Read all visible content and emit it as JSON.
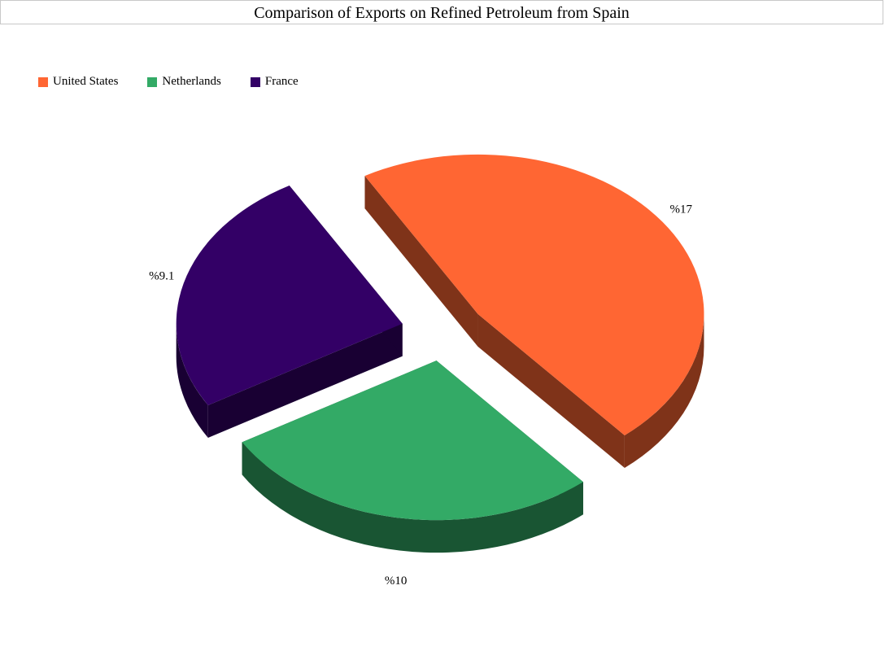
{
  "chart_data": {
    "type": "pie",
    "title": "Comparison of Exports on Refined Petroleum from Spain",
    "legend_position": "top-left",
    "slices": [
      {
        "name": "United States",
        "value": 17,
        "label": "%17",
        "color": "#FF6633",
        "side_color": "#7F3319"
      },
      {
        "name": "Netherlands",
        "value": 10,
        "label": "%10",
        "color": "#33AA66",
        "side_color": "#195533"
      },
      {
        "name": "France",
        "value": 9.1,
        "label": "%9.1",
        "color": "#330066",
        "side_color": "#190033"
      }
    ]
  }
}
